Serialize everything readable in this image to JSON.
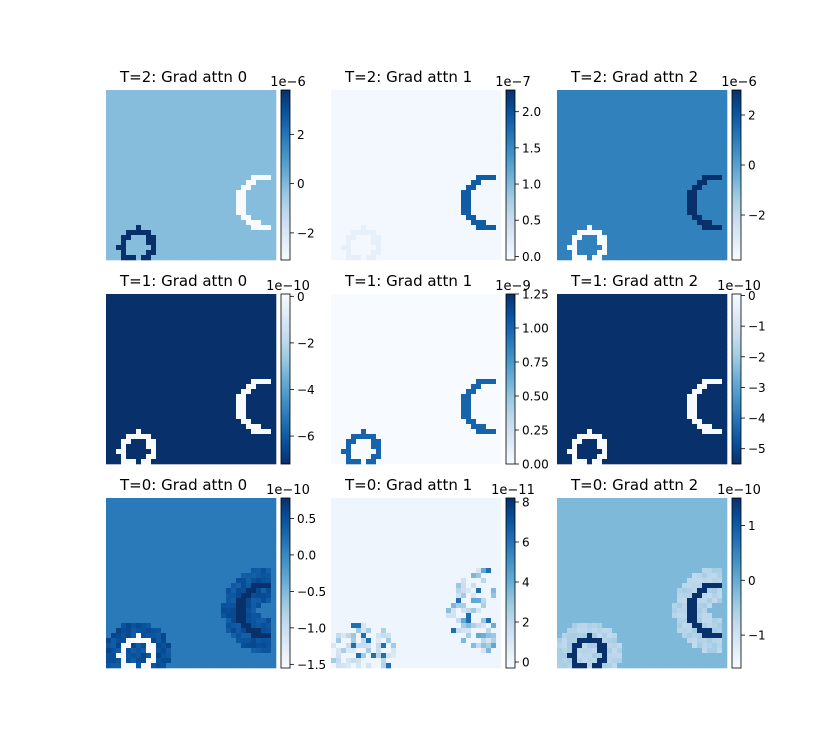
{
  "chart_data": [
    {
      "type": "heatmap",
      "title": "T=2: Grad attn 0",
      "colormap": "Blues",
      "colorbar_exponent": "1e−6",
      "colorbar_ticks": [
        {
          "label": "−2",
          "value": -2
        },
        {
          "label": "0",
          "value": 0
        },
        {
          "label": "2",
          "value": 2
        }
      ],
      "vmin": -3.1,
      "vmax": 3.8,
      "background_value": -0.1,
      "shapes": [
        {
          "kind": "arc",
          "cx": 0.94,
          "cy": 0.66,
          "r": 0.15,
          "value": -3.1
        },
        {
          "kind": "ring",
          "cx": 0.185,
          "cy": 0.92,
          "r": 0.09,
          "value": 3.8
        }
      ]
    },
    {
      "type": "heatmap",
      "title": "T=2: Grad attn 1",
      "colormap": "Blues",
      "colorbar_exponent": "1e−7",
      "colorbar_ticks": [
        {
          "label": "0.0",
          "value": 0.0
        },
        {
          "label": "0.5",
          "value": 0.5
        },
        {
          "label": "1.0",
          "value": 1.0
        },
        {
          "label": "1.5",
          "value": 1.5
        },
        {
          "label": "2.0",
          "value": 2.0
        }
      ],
      "vmin": -0.05,
      "vmax": 2.3,
      "background_value": 0.0,
      "shapes": [
        {
          "kind": "arc",
          "cx": 0.94,
          "cy": 0.66,
          "r": 0.15,
          "value": 1.9
        },
        {
          "kind": "ring",
          "cx": 0.185,
          "cy": 0.92,
          "r": 0.09,
          "value": 0.15
        }
      ]
    },
    {
      "type": "heatmap",
      "title": "T=2: Grad attn 2",
      "colormap": "Blues",
      "colorbar_exponent": "1e−6",
      "colorbar_ticks": [
        {
          "label": "−2",
          "value": -2
        },
        {
          "label": "0",
          "value": 0
        },
        {
          "label": "2",
          "value": 2
        }
      ],
      "vmin": -3.8,
      "vmax": 3.0,
      "background_value": 0.9,
      "shapes": [
        {
          "kind": "arc",
          "cx": 0.94,
          "cy": 0.66,
          "r": 0.15,
          "value": 3.0
        },
        {
          "kind": "ring",
          "cx": 0.185,
          "cy": 0.92,
          "r": 0.09,
          "value": -3.8
        }
      ]
    },
    {
      "type": "heatmap",
      "title": "T=1: Grad attn 0",
      "colormap": "Blues",
      "colorbar_exponent": "1e−10",
      "colorbar_ticks": [
        {
          "label": "−6",
          "value": -6
        },
        {
          "label": "−4",
          "value": -4
        },
        {
          "label": "−2",
          "value": -2
        },
        {
          "label": "0",
          "value": 0
        }
      ],
      "vmin": 0.1,
      "vmax": -7.2,
      "background_value": -7.2,
      "shapes": [
        {
          "kind": "arc",
          "cx": 0.94,
          "cy": 0.66,
          "r": 0.15,
          "value": 0.1
        },
        {
          "kind": "ring",
          "cx": 0.185,
          "cy": 0.92,
          "r": 0.09,
          "value": 0.1
        }
      ]
    },
    {
      "type": "heatmap",
      "title": "T=1: Grad attn 1",
      "colormap": "Blues",
      "colorbar_exponent": "1e−9",
      "colorbar_ticks": [
        {
          "label": "0.00",
          "value": 0.0
        },
        {
          "label": "0.25",
          "value": 0.25
        },
        {
          "label": "0.50",
          "value": 0.5
        },
        {
          "label": "0.75",
          "value": 0.75
        },
        {
          "label": "1.00",
          "value": 1.0
        },
        {
          "label": "1.25",
          "value": 1.25
        }
      ],
      "vmin": 0.0,
      "vmax": 1.25,
      "background_value": 0.0,
      "shapes": [
        {
          "kind": "arc",
          "cx": 0.94,
          "cy": 0.66,
          "r": 0.15,
          "value": 1.0
        },
        {
          "kind": "ring",
          "cx": 0.185,
          "cy": 0.92,
          "r": 0.09,
          "value": 1.0
        }
      ]
    },
    {
      "type": "heatmap",
      "title": "T=1: Grad attn 2",
      "colormap": "Blues",
      "colorbar_exponent": "1e−10",
      "colorbar_ticks": [
        {
          "label": "−5",
          "value": -5
        },
        {
          "label": "−4",
          "value": -4
        },
        {
          "label": "−3",
          "value": -3
        },
        {
          "label": "−2",
          "value": -2
        },
        {
          "label": "−1",
          "value": -1
        },
        {
          "label": "0",
          "value": 0
        }
      ],
      "vmin": 0.05,
      "vmax": -5.5,
      "background_value": -5.5,
      "shapes": [
        {
          "kind": "arc",
          "cx": 0.94,
          "cy": 0.66,
          "r": 0.15,
          "value": 0.05
        },
        {
          "kind": "ring",
          "cx": 0.185,
          "cy": 0.92,
          "r": 0.09,
          "value": 0.05
        }
      ]
    },
    {
      "type": "heatmap",
      "title": "T=0: Grad attn 0",
      "colormap": "Blues",
      "colorbar_exponent": "1e−10",
      "colorbar_ticks": [
        {
          "label": "−1.5",
          "value": -1.5
        },
        {
          "label": "−1.0",
          "value": -1.0
        },
        {
          "label": "−0.5",
          "value": -0.5
        },
        {
          "label": "0.0",
          "value": 0.0
        },
        {
          "label": "0.5",
          "value": 0.5
        }
      ],
      "vmin": -1.55,
      "vmax": 0.78,
      "background_value": 0.12,
      "shapes": [
        {
          "kind": "blurred-arc",
          "cx": 0.94,
          "cy": 0.66,
          "r": 0.15,
          "value": 0.78,
          "halo": 0.45
        },
        {
          "kind": "blurred-ring",
          "cx": 0.185,
          "cy": 0.92,
          "r": 0.09,
          "value": -1.55,
          "halo": 0.5
        }
      ]
    },
    {
      "type": "heatmap",
      "title": "T=0: Grad attn 1",
      "colormap": "Blues",
      "colorbar_exponent": "1e−11",
      "colorbar_ticks": [
        {
          "label": "0",
          "value": 0
        },
        {
          "label": "2",
          "value": 2
        },
        {
          "label": "4",
          "value": 4
        },
        {
          "label": "6",
          "value": 6
        },
        {
          "label": "8",
          "value": 8
        }
      ],
      "vmin": -0.3,
      "vmax": 8.2,
      "background_value": 0.1,
      "shapes": [
        {
          "kind": "speckle-arc",
          "cx": 0.94,
          "cy": 0.66,
          "r": 0.15,
          "value": 3.5
        },
        {
          "kind": "speckle-ring",
          "cx": 0.185,
          "cy": 0.92,
          "r": 0.09,
          "value": 2.5
        }
      ]
    },
    {
      "type": "heatmap",
      "title": "T=0: Grad attn 2",
      "colormap": "Blues",
      "colorbar_exponent": "1e−10",
      "colorbar_ticks": [
        {
          "label": "−1",
          "value": -1
        },
        {
          "label": "0",
          "value": 0
        },
        {
          "label": "1",
          "value": 1
        }
      ],
      "vmin": -1.6,
      "vmax": 1.5,
      "background_value": -0.2,
      "shapes": [
        {
          "kind": "blurred-arc",
          "cx": 0.94,
          "cy": 0.66,
          "r": 0.15,
          "value": 1.5,
          "halo": -0.6
        },
        {
          "kind": "blurred-ring",
          "cx": 0.185,
          "cy": 0.92,
          "r": 0.09,
          "value": 1.5,
          "halo": -0.6
        }
      ]
    }
  ]
}
